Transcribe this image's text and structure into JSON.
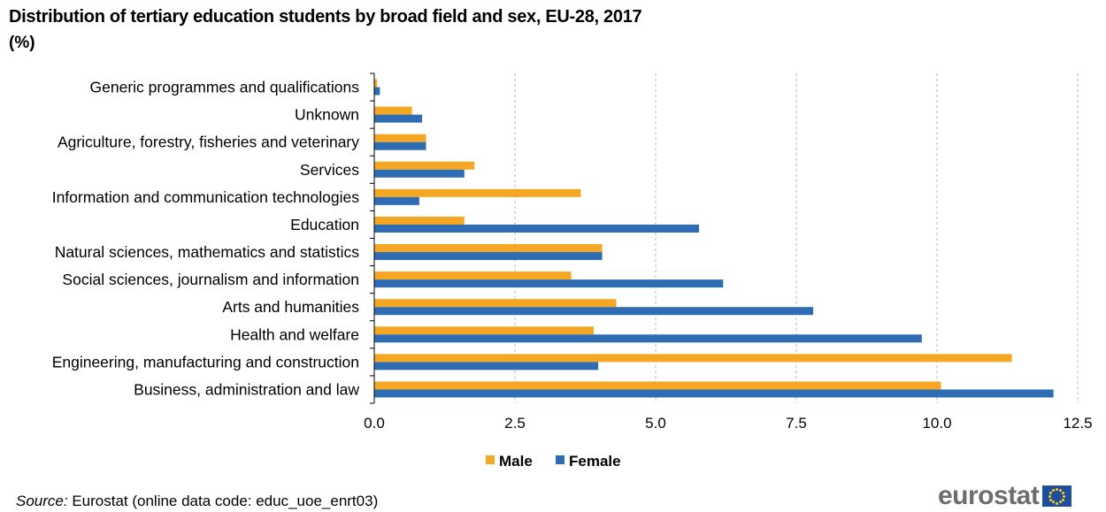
{
  "chart_data": {
    "type": "bar",
    "orientation": "horizontal",
    "title": "Distribution of tertiary education students by broad field and sex, EU-28, 2017",
    "subtitle": "(%)",
    "categories": [
      "Generic programmes and qualifications",
      "Unknown",
      "Agriculture, forestry, fisheries and veterinary",
      "Services",
      "Information and communication technologies",
      "Education",
      "Natural sciences, mathematics and statistics",
      "Social sciences, journalism and information",
      "Arts and humanities",
      "Health and welfare",
      "Engineering, manufacturing and construction",
      "Business, administration and law"
    ],
    "series": [
      {
        "name": "Male",
        "color": "#f5a623",
        "values": [
          0.05,
          0.67,
          0.92,
          1.78,
          3.67,
          1.6,
          4.05,
          3.5,
          4.3,
          3.9,
          11.33,
          10.07
        ]
      },
      {
        "name": "Female",
        "color": "#2e6db4",
        "values": [
          0.1,
          0.85,
          0.92,
          1.6,
          0.8,
          5.77,
          4.05,
          6.2,
          7.8,
          9.73,
          3.98,
          12.07
        ]
      }
    ],
    "xlim": [
      0,
      12.5
    ],
    "xticks": [
      "0.0",
      "2.5",
      "5.0",
      "7.5",
      "10.0",
      "12.5"
    ],
    "xtick_values": [
      0,
      2.5,
      5,
      7.5,
      10,
      12.5
    ],
    "grid": "vertical dashed",
    "legend_position": "bottom"
  },
  "source": {
    "label": "Source:",
    "text": " Eurostat (online data code: educ_uoe_enrt03)"
  },
  "logo": {
    "text": "eurostat"
  }
}
